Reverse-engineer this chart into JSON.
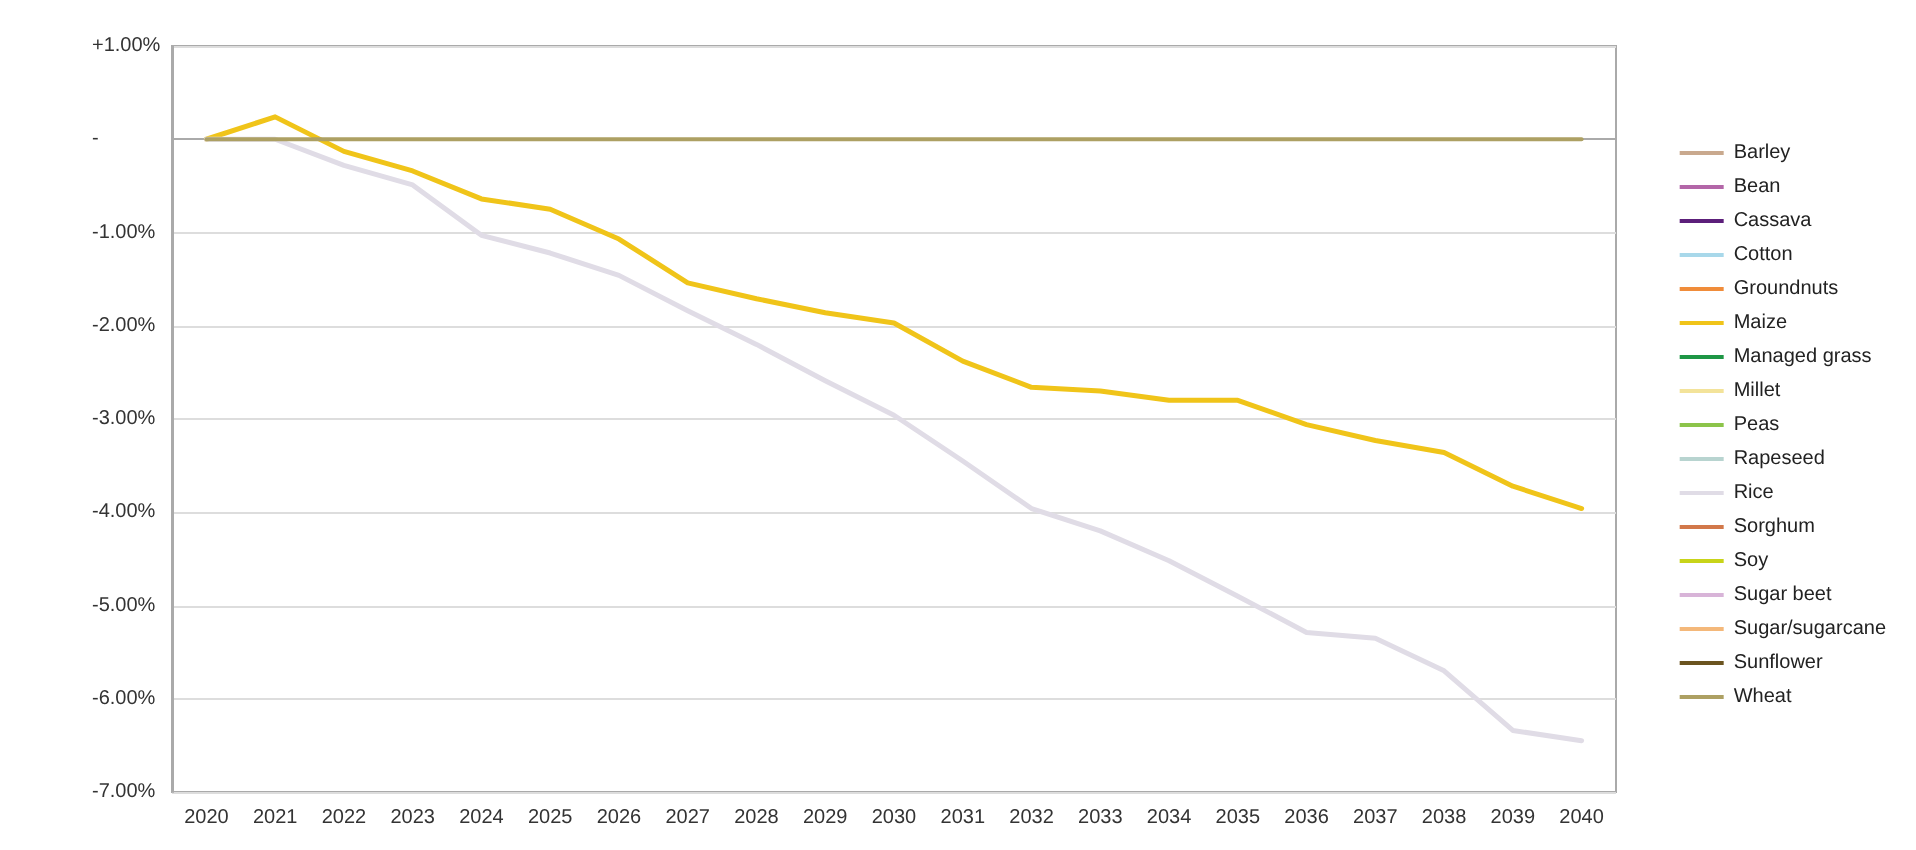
{
  "chart_data": {
    "type": "line",
    "categories": [
      "2020",
      "2021",
      "2022",
      "2023",
      "2024",
      "2025",
      "2026",
      "2027",
      "2028",
      "2029",
      "2030",
      "2031",
      "2032",
      "2033",
      "2034",
      "2035",
      "2036",
      "2037",
      "2038",
      "2039",
      "2040"
    ],
    "ylim": [
      -7,
      1
    ],
    "yticks": [
      {
        "value": 1,
        "label": "+1.00%"
      },
      {
        "value": 0,
        "label": "-"
      },
      {
        "value": -1,
        "label": "-1.00%"
      },
      {
        "value": -2,
        "label": "-2.00%"
      },
      {
        "value": -3,
        "label": "-3.00%"
      },
      {
        "value": -4,
        "label": "-4.00%"
      },
      {
        "value": -5,
        "label": "-5.00%"
      },
      {
        "value": -6,
        "label": "-6.00%"
      },
      {
        "value": -7,
        "label": "-7.00%"
      }
    ],
    "grid": "y",
    "legend": "right",
    "marker": "none",
    "line_style": "solid",
    "series": [
      {
        "name": "Barley",
        "color": "#c9a98e",
        "values": [
          null,
          null,
          null,
          null,
          null,
          null,
          null,
          null,
          null,
          null,
          null,
          null,
          null,
          null,
          null,
          null,
          null,
          null,
          null,
          null,
          null
        ]
      },
      {
        "name": "Bean",
        "color": "#b366a8",
        "values": [
          null,
          null,
          null,
          null,
          null,
          null,
          null,
          null,
          null,
          null,
          null,
          null,
          null,
          null,
          null,
          null,
          null,
          null,
          null,
          null,
          null
        ]
      },
      {
        "name": "Cassava",
        "color": "#5c1f7a",
        "values": [
          null,
          null,
          null,
          null,
          null,
          null,
          null,
          null,
          null,
          null,
          null,
          null,
          null,
          null,
          null,
          null,
          null,
          null,
          null,
          null,
          null
        ]
      },
      {
        "name": "Cotton",
        "color": "#a8d8ea",
        "values": [
          null,
          null,
          null,
          null,
          null,
          null,
          null,
          null,
          null,
          null,
          null,
          null,
          null,
          null,
          null,
          null,
          null,
          null,
          null,
          null,
          null
        ]
      },
      {
        "name": "Groundnuts",
        "color": "#f08c3a",
        "values": [
          null,
          null,
          null,
          null,
          null,
          null,
          null,
          null,
          null,
          null,
          null,
          null,
          null,
          null,
          null,
          null,
          null,
          null,
          null,
          null,
          null
        ]
      },
      {
        "name": "Maize",
        "color": "#f0c419",
        "values": [
          0,
          0.24,
          -0.13,
          -0.34,
          -0.64,
          -0.75,
          -1.07,
          -1.54,
          -1.71,
          -1.86,
          -1.97,
          -2.38,
          -2.66,
          -2.7,
          -2.8,
          -2.8,
          -3.06,
          -3.23,
          -3.36,
          -3.72,
          -3.96
        ]
      },
      {
        "name": "Managed grass",
        "color": "#1e9645",
        "values": [
          null,
          null,
          null,
          null,
          null,
          null,
          null,
          null,
          null,
          null,
          null,
          null,
          null,
          null,
          null,
          null,
          null,
          null,
          null,
          null,
          null
        ]
      },
      {
        "name": "Millet",
        "color": "#f3e39a",
        "values": [
          null,
          null,
          null,
          null,
          null,
          null,
          null,
          null,
          null,
          null,
          null,
          null,
          null,
          null,
          null,
          null,
          null,
          null,
          null,
          null,
          null
        ]
      },
      {
        "name": "Peas",
        "color": "#8cc44a",
        "values": [
          null,
          null,
          null,
          null,
          null,
          null,
          null,
          null,
          null,
          null,
          null,
          null,
          null,
          null,
          null,
          null,
          null,
          null,
          null,
          null,
          null
        ]
      },
      {
        "name": "Rapeseed",
        "color": "#b8d4d0",
        "values": [
          null,
          null,
          null,
          null,
          null,
          null,
          null,
          null,
          null,
          null,
          null,
          null,
          null,
          null,
          null,
          null,
          null,
          null,
          null,
          null,
          null
        ]
      },
      {
        "name": "Rice",
        "color": "#e0dce6",
        "values": [
          0,
          0,
          -0.28,
          -0.49,
          -1.03,
          -1.22,
          -1.46,
          -1.84,
          -2.2,
          -2.59,
          -2.96,
          -3.45,
          -3.96,
          -4.2,
          -4.52,
          -4.9,
          -5.29,
          -5.35,
          -5.7,
          -6.34,
          -6.45
        ]
      },
      {
        "name": "Sorghum",
        "color": "#d2784a",
        "values": [
          null,
          null,
          null,
          null,
          null,
          null,
          null,
          null,
          null,
          null,
          null,
          null,
          null,
          null,
          null,
          null,
          null,
          null,
          null,
          null,
          null
        ]
      },
      {
        "name": "Soy",
        "color": "#c8d419",
        "values": [
          null,
          null,
          null,
          null,
          null,
          null,
          null,
          null,
          null,
          null,
          null,
          null,
          null,
          null,
          null,
          null,
          null,
          null,
          null,
          null,
          null
        ]
      },
      {
        "name": "Sugar beet",
        "color": "#d8b4d8",
        "values": [
          null,
          null,
          null,
          null,
          null,
          null,
          null,
          null,
          null,
          null,
          null,
          null,
          null,
          null,
          null,
          null,
          null,
          null,
          null,
          null,
          null
        ]
      },
      {
        "name": "Sugar/sugarcane",
        "color": "#f4b87a",
        "values": [
          null,
          null,
          null,
          null,
          null,
          null,
          null,
          null,
          null,
          null,
          null,
          null,
          null,
          null,
          null,
          null,
          null,
          null,
          null,
          null,
          null
        ]
      },
      {
        "name": "Sunflower",
        "color": "#6b5420",
        "values": [
          null,
          null,
          null,
          null,
          null,
          null,
          null,
          null,
          null,
          null,
          null,
          null,
          null,
          null,
          null,
          null,
          null,
          null,
          null,
          null,
          null
        ]
      },
      {
        "name": "Wheat",
        "color": "#ada063",
        "values": [
          0,
          0,
          0,
          0,
          0,
          0,
          0,
          0,
          0,
          0,
          0,
          0,
          0,
          0,
          0,
          0,
          0,
          0,
          0,
          0,
          0
        ]
      }
    ]
  }
}
